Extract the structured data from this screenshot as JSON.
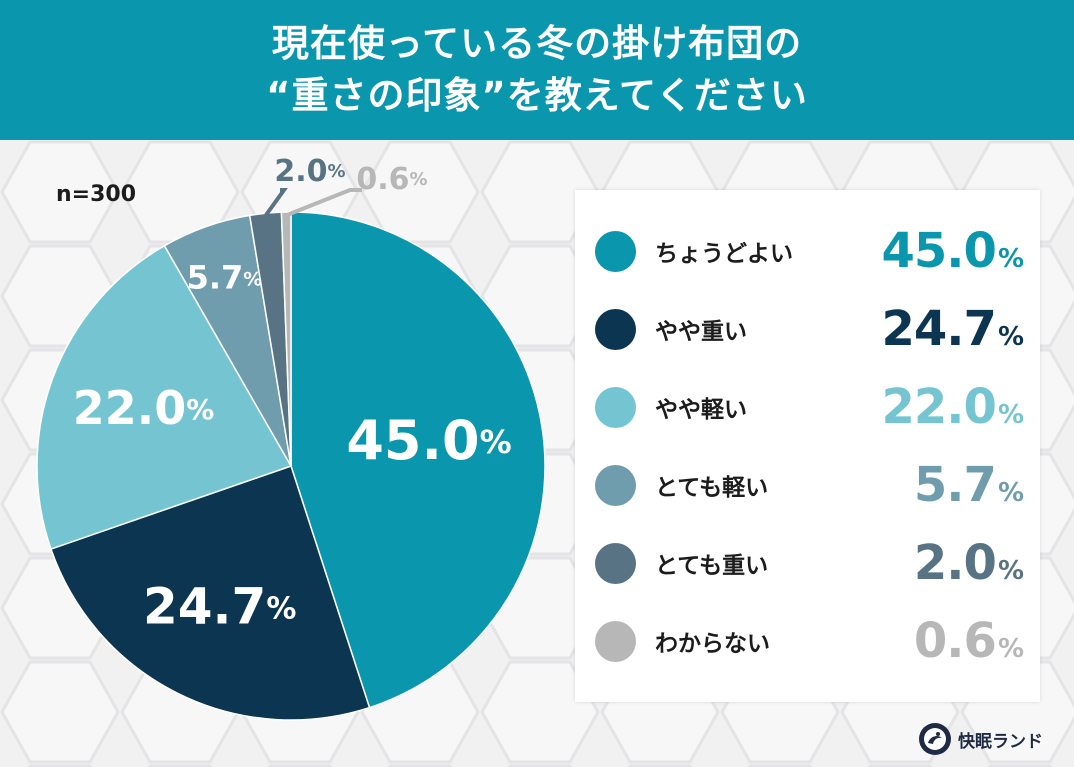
{
  "header": {
    "title_line1": "現在使っている冬の掛け布団の",
    "title_line2": "“重さの印象”を教えてください"
  },
  "sample_size": "n=300",
  "chart_data": {
    "type": "pie",
    "title": "現在使っている冬の掛け布団の“重さの印象”を教えてください",
    "categories": [
      "ちょうどよい",
      "やや重い",
      "やや軽い",
      "とても軽い",
      "とても重い",
      "わからない"
    ],
    "values": [
      45.0,
      24.7,
      22.0,
      5.7,
      2.0,
      0.6
    ],
    "value_labels": [
      "45.0",
      "24.7",
      "22.0",
      "5.7",
      "2.0",
      "0.6"
    ],
    "unit": "%",
    "colors": [
      "#0a97ae",
      "#0b3550",
      "#74c4d1",
      "#6f9dae",
      "#587484",
      "#b7b7b7"
    ],
    "label_colors": [
      "#ffffff",
      "#ffffff",
      "#ffffff",
      "#ffffff",
      "#ffffff",
      "#ffffff"
    ],
    "legend_value_colors": [
      "#0a97ae",
      "#0b3550",
      "#74c4d1",
      "#6f9dae",
      "#587484",
      "#b7b7b7"
    ],
    "legend": "right"
  },
  "brand": {
    "name": "快眠ランド",
    "logo_icon": "kaimin-land-logo-icon"
  }
}
